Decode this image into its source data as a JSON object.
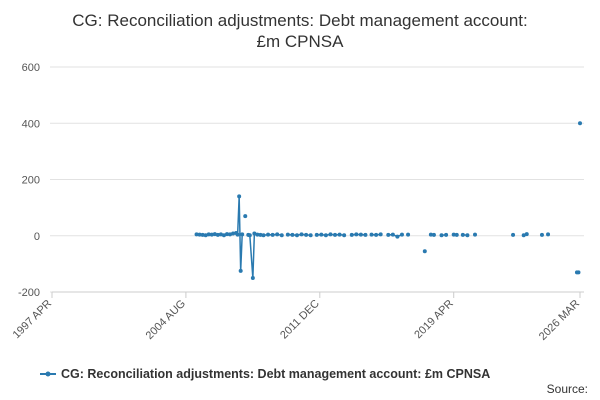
{
  "chart_data": {
    "type": "line",
    "title": "CG: Reconciliation adjustments: Debt management account: £m CPNSA",
    "source": "Source:",
    "x": [
      "2005 MAR",
      "2005 MAY",
      "2005 JUL",
      "2005 SEP",
      "2005 NOV",
      "2006 JAN",
      "2006 MAR",
      "2006 MAY",
      "2006 JUL",
      "2006 SEP",
      "2006 NOV",
      "2007 JAN",
      "2007 MAR",
      "2007 MAY",
      "2007 JUN",
      "2007 JUL",
      "2007 AUG",
      "2007 SEP",
      null,
      "2007 NOV",
      null,
      "2008 JAN",
      "2008 FEB",
      "2008 APR",
      "2008 MAY",
      null,
      "2008 JUL",
      "2008 SEP",
      "2008 NOV",
      "2009 FEB",
      "2009 MAY",
      "2009 AUG",
      "2009 NOV",
      null,
      "2010 MAR",
      "2010 JUN",
      "2010 SEP",
      "2010 DEC",
      "2011 MAR",
      "2011 JUN",
      null,
      "2011 OCT",
      "2012 JAN",
      "2012 APR",
      "2012 JUL",
      "2012 OCT",
      "2013 JAN",
      "2013 APR",
      null,
      "2013 SEP",
      "2013 DEC",
      "2014 MAR",
      "2014 JUN",
      null,
      "2014 OCT",
      "2015 JAN",
      "2015 APR",
      null,
      "2015 SEP",
      "2015 DEC",
      "2016 MAR",
      "2016 JUN",
      null,
      "2016 OCT",
      null,
      "2017 SEP",
      null,
      "2018 JAN",
      "2018 MAR",
      null,
      "2018 AUG",
      "2018 NOV",
      null,
      "2019 APR",
      "2019 JUN",
      null,
      "2019 OCT",
      "2020 JAN",
      null,
      "2020 JUN",
      null,
      "2022 JUL",
      null,
      "2023 FEB",
      "2023 APR",
      null,
      "2024 FEB",
      null,
      "2024 JUN",
      null,
      "2026 JAN",
      "2026 FEB",
      null,
      "2026 MAR"
    ],
    "series": [
      {
        "name": "CG: Reconciliation adjustments: Debt management account: £m CPNSA",
        "color": "#2a7ab0",
        "values": [
          5,
          4,
          3,
          2,
          5,
          4,
          6,
          3,
          5,
          2,
          6,
          5,
          8,
          10,
          4,
          140,
          -125,
          5,
          null,
          70,
          null,
          3,
          2,
          -150,
          8,
          null,
          4,
          3,
          2,
          4,
          3,
          5,
          2,
          null,
          4,
          3,
          2,
          5,
          3,
          2,
          null,
          3,
          4,
          2,
          5,
          3,
          4,
          2,
          null,
          3,
          5,
          4,
          3,
          null,
          4,
          3,
          5,
          null,
          3,
          4,
          -3,
          4,
          null,
          4,
          null,
          -55,
          null,
          4,
          3,
          null,
          2,
          3,
          null,
          4,
          3,
          null,
          3,
          2,
          null,
          4,
          null,
          3,
          null,
          2,
          6,
          null,
          3,
          null,
          5,
          null,
          -130,
          -130,
          null,
          400
        ]
      }
    ],
    "xlim": [
      "1997 APR",
      "2026 MAR"
    ],
    "xticks": [
      "1997 APR",
      "2004 AUG",
      "2011 DEC",
      "2019 APR",
      "2026 MAR"
    ],
    "ylim": [
      -200,
      600
    ],
    "yticks": [
      -200,
      0,
      200,
      400,
      600
    ],
    "grid": true,
    "legend": "bottom"
  }
}
